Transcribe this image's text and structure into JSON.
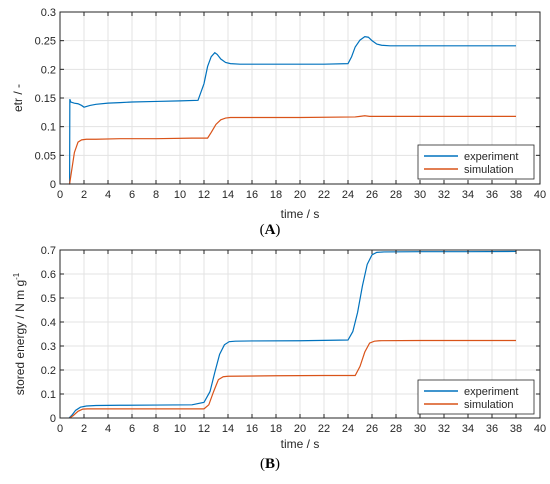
{
  "chart_data": [
    {
      "type": "line",
      "panel_label": "(A)",
      "title": "",
      "xlabel": "time / s",
      "ylabel": "etr / -",
      "ylabel_superscript": "",
      "xlim": [
        0,
        40
      ],
      "ylim": [
        0,
        0.3
      ],
      "x_ticks": [
        0,
        2,
        4,
        6,
        8,
        10,
        12,
        14,
        16,
        18,
        20,
        22,
        24,
        26,
        28,
        30,
        32,
        34,
        36,
        38,
        40
      ],
      "y_ticks": [
        0,
        0.05,
        0.1,
        0.15,
        0.2,
        0.25,
        0.3
      ],
      "y_tick_labels": [
        "0",
        "0.05",
        "0.1",
        "0.15",
        "0.2",
        "0.25",
        "0.3"
      ],
      "grid": true,
      "legend_position": "bottom-right",
      "series": [
        {
          "name": "experiment",
          "color": "#0072BD",
          "x": [
            0.75,
            0.8,
            0.82,
            0.9,
            1.2,
            1.5,
            1.8,
            2.0,
            2.5,
            3,
            4,
            5,
            6,
            8,
            10,
            11.5,
            12.0,
            12.3,
            12.6,
            12.9,
            13.1,
            13.4,
            13.8,
            14.2,
            15,
            18,
            22,
            24.0,
            24.3,
            24.6,
            25.0,
            25.4,
            25.7,
            26.0,
            26.4,
            26.8,
            27.5,
            30,
            34,
            38
          ],
          "y": [
            0,
            0.0,
            0.148,
            0.143,
            0.141,
            0.14,
            0.137,
            0.134,
            0.137,
            0.139,
            0.141,
            0.142,
            0.143,
            0.144,
            0.145,
            0.146,
            0.175,
            0.205,
            0.222,
            0.229,
            0.226,
            0.218,
            0.212,
            0.21,
            0.209,
            0.209,
            0.209,
            0.21,
            0.222,
            0.239,
            0.251,
            0.257,
            0.256,
            0.25,
            0.244,
            0.242,
            0.241,
            0.241,
            0.241,
            0.241
          ]
        },
        {
          "name": "simulation",
          "color": "#D95319",
          "x": [
            0.8,
            1.2,
            1.5,
            1.8,
            2.2,
            3,
            5,
            8,
            11,
            12.3,
            12.6,
            13.0,
            13.4,
            13.8,
            14.2,
            16,
            20,
            24.6,
            25.0,
            25.4,
            25.8,
            26.2,
            30,
            34,
            38
          ],
          "y": [
            0,
            0.055,
            0.073,
            0.077,
            0.078,
            0.078,
            0.079,
            0.079,
            0.08,
            0.08,
            0.09,
            0.104,
            0.112,
            0.115,
            0.116,
            0.116,
            0.116,
            0.117,
            0.118,
            0.119,
            0.118,
            0.118,
            0.118,
            0.118,
            0.118
          ]
        }
      ]
    },
    {
      "type": "line",
      "panel_label": "(B)",
      "title": "",
      "xlabel": "time / s",
      "ylabel": "stored energy /    N m g",
      "ylabel_superscript": "-1",
      "xlim": [
        0,
        40
      ],
      "ylim": [
        0,
        0.7
      ],
      "x_ticks": [
        0,
        2,
        4,
        6,
        8,
        10,
        12,
        14,
        16,
        18,
        20,
        22,
        24,
        26,
        28,
        30,
        32,
        34,
        36,
        38,
        40
      ],
      "y_ticks": [
        0,
        0.1,
        0.2,
        0.3,
        0.4,
        0.5,
        0.6,
        0.7
      ],
      "y_tick_labels": [
        "0",
        "0.1",
        "0.2",
        "0.3",
        "0.4",
        "0.5",
        "0.6",
        "0.7"
      ],
      "grid": true,
      "legend_position": "bottom-right",
      "series": [
        {
          "name": "experiment",
          "color": "#0072BD",
          "x": [
            0.75,
            1.0,
            1.3,
            1.7,
            2.2,
            3,
            5,
            8,
            11,
            12.0,
            12.5,
            12.9,
            13.3,
            13.7,
            14.1,
            14.6,
            16,
            20,
            24.0,
            24.4,
            24.8,
            25.2,
            25.6,
            26.0,
            26.4,
            27,
            30,
            34,
            38
          ],
          "y": [
            0,
            0.012,
            0.032,
            0.045,
            0.05,
            0.052,
            0.053,
            0.054,
            0.055,
            0.065,
            0.11,
            0.19,
            0.265,
            0.305,
            0.318,
            0.32,
            0.321,
            0.322,
            0.325,
            0.36,
            0.44,
            0.55,
            0.64,
            0.68,
            0.69,
            0.692,
            0.693,
            0.693,
            0.694
          ]
        },
        {
          "name": "simulation",
          "color": "#D95319",
          "x": [
            0.8,
            1.1,
            1.5,
            1.9,
            2.3,
            3,
            6,
            9,
            12.0,
            12.4,
            12.8,
            13.2,
            13.6,
            14,
            18,
            22,
            24.6,
            25.0,
            25.4,
            25.8,
            26.2,
            26.6,
            30,
            34,
            38
          ],
          "y": [
            0,
            0.01,
            0.028,
            0.037,
            0.038,
            0.038,
            0.038,
            0.038,
            0.038,
            0.055,
            0.11,
            0.16,
            0.172,
            0.174,
            0.176,
            0.177,
            0.177,
            0.215,
            0.275,
            0.312,
            0.32,
            0.322,
            0.323,
            0.323,
            0.323
          ]
        }
      ]
    }
  ]
}
